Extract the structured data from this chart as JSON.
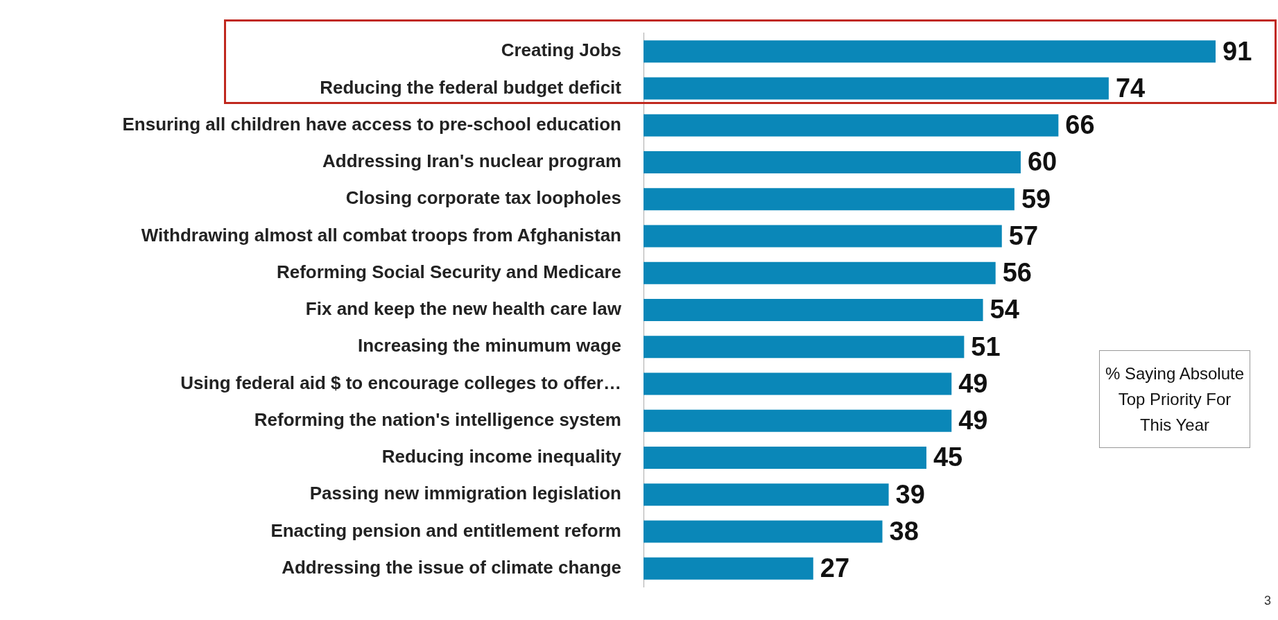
{
  "chart_data": {
    "type": "bar",
    "orientation": "horizontal",
    "categories": [
      "Creating Jobs",
      "Reducing the federal budget deficit",
      "Ensuring all children have access to pre-school education",
      "Addressing Iran's nuclear program",
      "Closing corporate tax loopholes",
      "Withdrawing almost all combat troops from Afghanistan",
      "Reforming Social Security and Medicare",
      "Fix and keep the new health care law",
      "Increasing the minumum wage",
      "Using federal aid $ to encourage colleges to offer…",
      "Reforming the nation's intelligence system",
      "Reducing income inequality",
      "Passing new immigration legislation",
      "Enacting pension and entitlement reform",
      "Addressing the issue of climate change"
    ],
    "values": [
      91,
      74,
      66,
      60,
      59,
      57,
      56,
      54,
      51,
      49,
      49,
      45,
      39,
      38,
      27
    ],
    "color": "#0a87b8",
    "data_labels": true,
    "grid": false,
    "legend": false,
    "annotations": [
      "% Saying Absolute Top Priority For This Year",
      "3"
    ]
  }
}
